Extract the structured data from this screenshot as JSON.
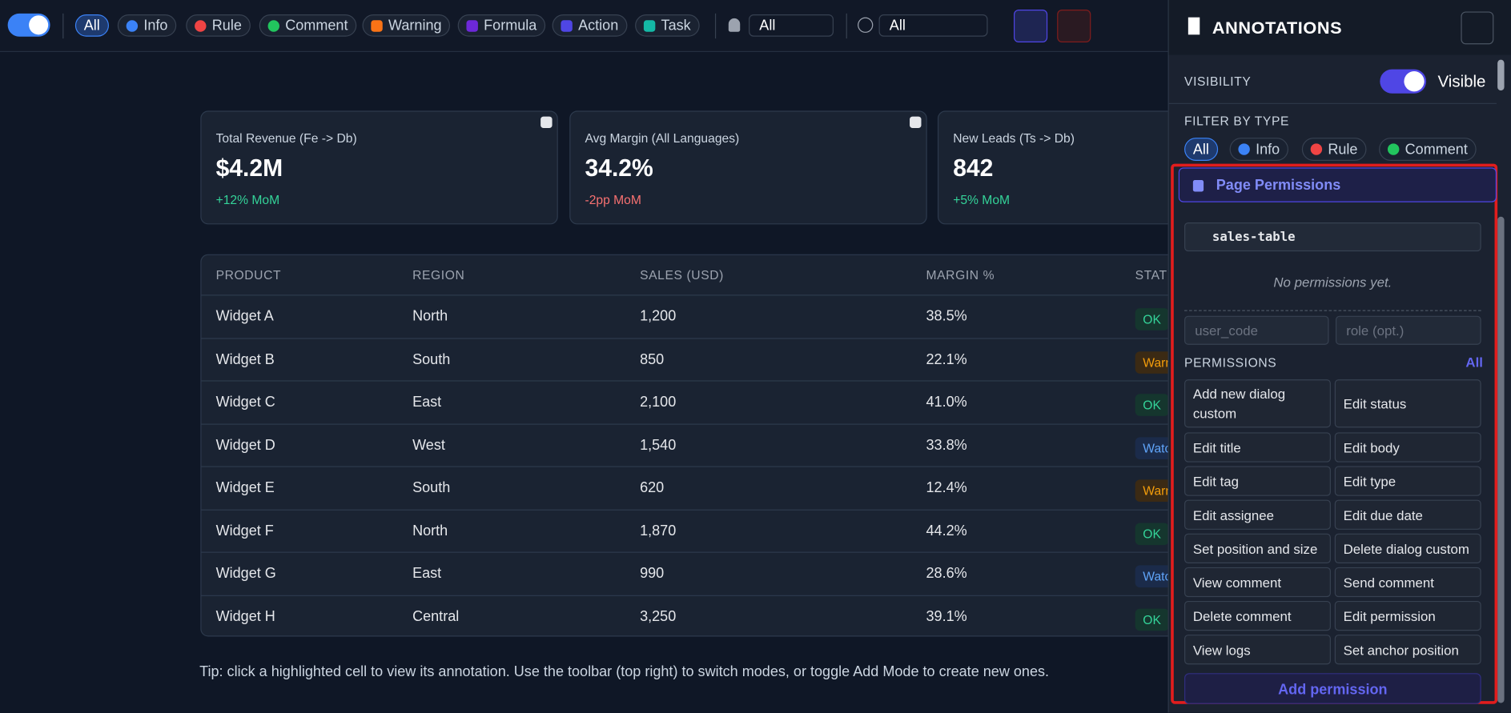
{
  "toolbar": {
    "filters": [
      "All",
      "Info",
      "Rule",
      "Comment",
      "Warning",
      "Formula",
      "Action",
      "Task"
    ],
    "user_select": "All",
    "status_select": "All"
  },
  "cards": [
    {
      "label": "Total Revenue (Fe -> Db)",
      "value": "$4.2M",
      "delta": "+12% MoM"
    },
    {
      "label": "Avg Margin (All Languages)",
      "value": "34.2%",
      "delta": "-2pp MoM"
    },
    {
      "label": "New Leads (Ts -> Db)",
      "value": "842",
      "delta": "+5% MoM"
    }
  ],
  "table": {
    "headers": [
      "PRODUCT",
      "REGION",
      "SALES (USD)",
      "MARGIN %",
      "STATU"
    ],
    "rows": [
      [
        "Widget A",
        "North",
        "1,200",
        "38.5%",
        "OK"
      ],
      [
        "Widget B",
        "South",
        "850",
        "22.1%",
        "Warn"
      ],
      [
        "Widget C",
        "East",
        "2,100",
        "41.0%",
        "OK"
      ],
      [
        "Widget D",
        "West",
        "1,540",
        "33.8%",
        "Watc"
      ],
      [
        "Widget E",
        "South",
        "620",
        "12.4%",
        "Warn"
      ],
      [
        "Widget F",
        "North",
        "1,870",
        "44.2%",
        "OK"
      ],
      [
        "Widget G",
        "East",
        "990",
        "28.6%",
        "Watc"
      ],
      [
        "Widget H",
        "Central",
        "3,250",
        "39.1%",
        "OK"
      ]
    ]
  },
  "tip": "Tip: click a highlighted cell to view its annotation. Use the toolbar (top right) to switch modes, or toggle Add Mode to create new ones.",
  "panel": {
    "title": "ANNOTATIONS",
    "visibility_label": "VISIBILITY",
    "visibility_state": "Visible",
    "filter_label": "FILTER BY TYPE",
    "filters": [
      "All",
      "Info",
      "Rule",
      "Comment"
    ],
    "section_title": "Page Permissions",
    "tag": "sales-table",
    "empty": "No permissions yet.",
    "user_placeholder": "user_code",
    "role_placeholder": "role (opt.)",
    "permissions_label": "PERMISSIONS",
    "all_link": "All",
    "permissions": [
      "Add new dialog custom",
      "Edit status",
      "Edit title",
      "Edit body",
      "Edit tag",
      "Edit type",
      "Edit assignee",
      "Edit due date",
      "Set position and size",
      "Delete dialog custom",
      "View comment",
      "Send comment",
      "Delete comment",
      "Edit permission",
      "View logs",
      "Set anchor position"
    ],
    "add_button": "Add permission"
  }
}
